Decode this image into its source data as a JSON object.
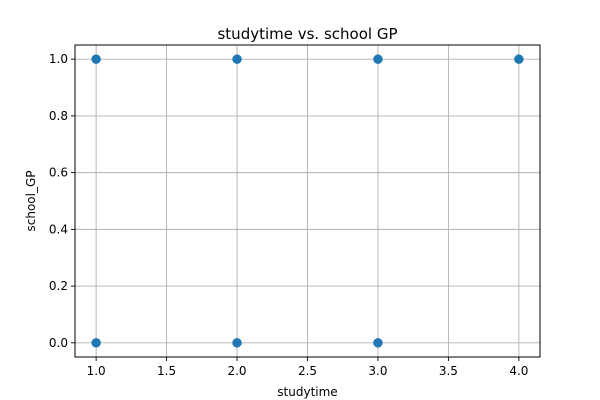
{
  "chart_data": {
    "type": "scatter",
    "title": "studytime vs. school GP",
    "xlabel": "studytime",
    "ylabel": "school_GP",
    "xlim": [
      0.85,
      4.15
    ],
    "ylim": [
      -0.05,
      1.05
    ],
    "xticks": [
      1.0,
      1.5,
      2.0,
      2.5,
      3.0,
      3.5,
      4.0
    ],
    "xtick_labels": [
      "1.0",
      "1.5",
      "2.0",
      "2.5",
      "3.0",
      "3.5",
      "4.0"
    ],
    "yticks": [
      0.0,
      0.2,
      0.4,
      0.6,
      0.8,
      1.0
    ],
    "ytick_labels": [
      "0.0",
      "0.2",
      "0.4",
      "0.6",
      "0.8",
      "1.0"
    ],
    "grid": true,
    "marker_color": "#1f77b4",
    "points": [
      {
        "x": 1.0,
        "y": 1.0
      },
      {
        "x": 2.0,
        "y": 1.0
      },
      {
        "x": 3.0,
        "y": 1.0
      },
      {
        "x": 4.0,
        "y": 1.0
      },
      {
        "x": 1.0,
        "y": 0.0
      },
      {
        "x": 2.0,
        "y": 0.0
      },
      {
        "x": 3.0,
        "y": 0.0
      }
    ]
  }
}
